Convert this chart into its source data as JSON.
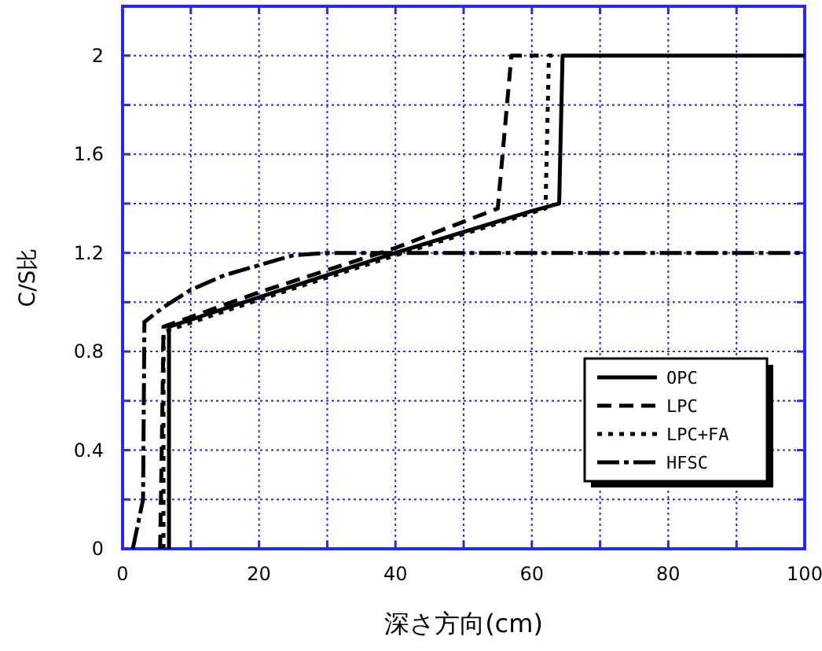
{
  "chart_data": {
    "type": "line",
    "xlabel": "深さ方向(cm)",
    "ylabel": "C/S比",
    "xlim": [
      0,
      100
    ],
    "ylim": [
      0,
      2.2
    ],
    "xticks": [
      0,
      {
        "value": 10,
        "label": null
      },
      20,
      {
        "value": 30,
        "label": null
      },
      40,
      {
        "value": 50,
        "label": null
      },
      60,
      {
        "value": 70,
        "label": null
      },
      80,
      {
        "value": 90,
        "label": null
      },
      100
    ],
    "yticks": [
      0,
      {
        "value": 0.2,
        "label": null
      },
      0.4,
      {
        "value": 0.6,
        "label": null
      },
      0.8,
      {
        "value": 1.0,
        "label": null
      },
      1.2,
      {
        "value": 1.4,
        "label": null
      },
      1.6,
      {
        "value": 1.8,
        "label": null
      },
      2
    ],
    "grid": true,
    "legend": "right",
    "marker": "none",
    "series": [
      {
        "name": "OPC",
        "color": "#000000",
        "line_style": "solid",
        "x": [
          6.8,
          6.8,
          20,
          40,
          60,
          64,
          64.5,
          100
        ],
        "values": [
          0,
          0.9,
          1.02,
          1.2,
          1.37,
          1.4,
          2.0,
          2.0
        ]
      },
      {
        "name": "LPC",
        "color": "#000000",
        "line_style": "dashed",
        "x": [
          5.5,
          5.8,
          6,
          20,
          40,
          55,
          57,
          61
        ],
        "values": [
          0,
          0.5,
          0.9,
          1.04,
          1.22,
          1.38,
          2.0,
          2.0
        ]
      },
      {
        "name": "LPC+FA",
        "color": "#000000",
        "line_style": "dotted",
        "x": [
          6,
          6,
          20,
          40,
          62,
          62.5,
          64
        ],
        "values": [
          0,
          0.88,
          1.01,
          1.19,
          1.38,
          2.0,
          2.0
        ]
      },
      {
        "name": "HFSC",
        "color": "#000000",
        "line_style": "dashdot",
        "x": [
          1.5,
          3,
          3.2,
          6,
          10,
          15,
          20,
          25,
          30,
          100
        ],
        "values": [
          0,
          0.2,
          0.92,
          0.98,
          1.05,
          1.11,
          1.15,
          1.19,
          1.2,
          1.2
        ]
      }
    ]
  }
}
